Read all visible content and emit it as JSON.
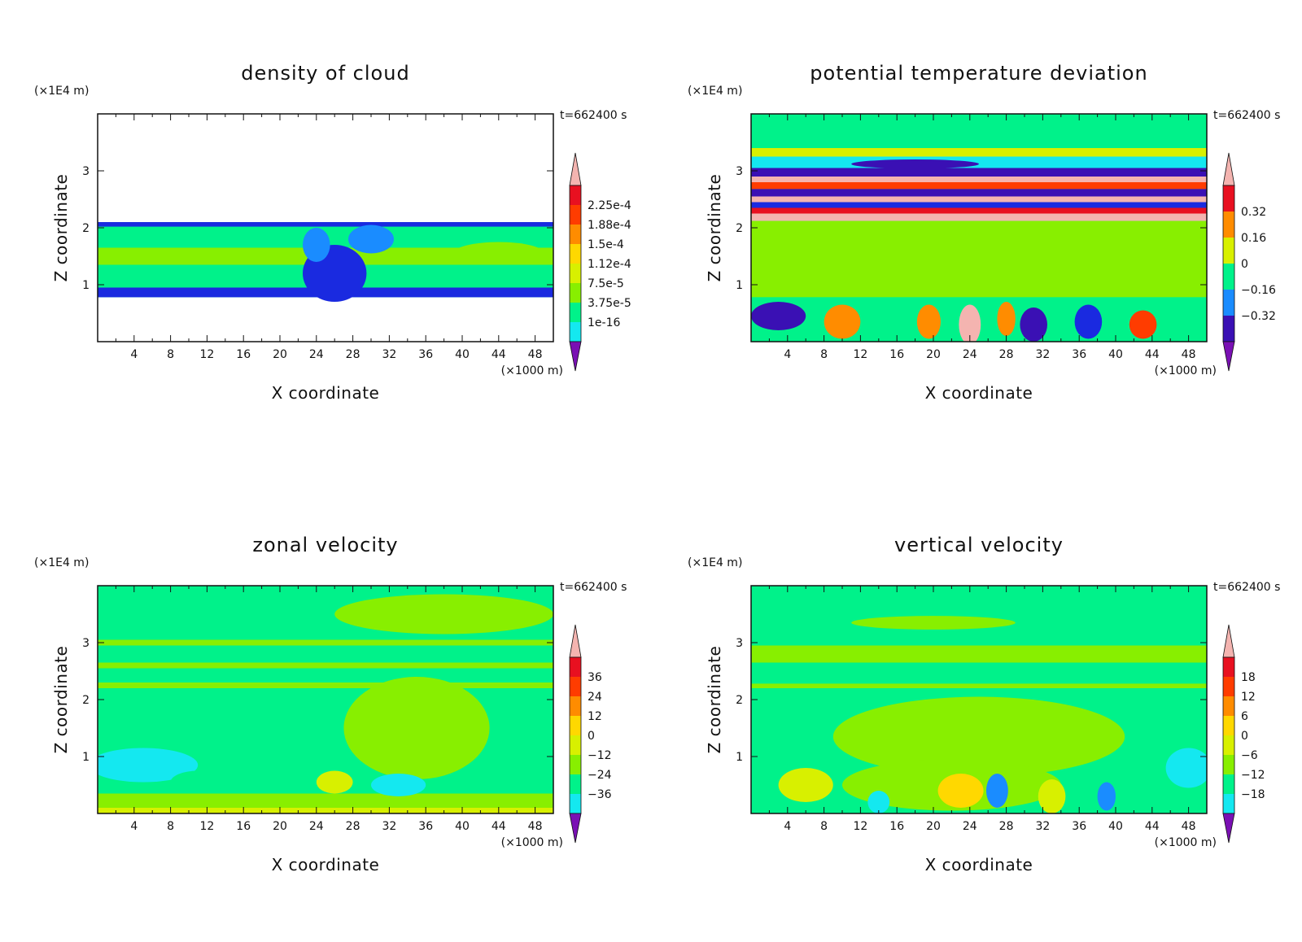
{
  "colormap": [
    "#7a10b4",
    "#3a10b4",
    "#1a2ae0",
    "#1a8cff",
    "#14e8f0",
    "#00f28a",
    "#88ef00",
    "#d8f000",
    "#ffd800",
    "#ff8c00",
    "#ff3c00",
    "#e81020",
    "#f4b4b0"
  ],
  "chart_data": [
    {
      "type": "contour",
      "title": "density of cloud",
      "xlabel": "X coordinate",
      "ylabel": "Z coordinate",
      "x_unit": "(×1000 m)",
      "y_unit": "(×1E4 m)",
      "time_label": "t=662400 s",
      "xlim": [
        0,
        50
      ],
      "ylim": [
        0,
        4
      ],
      "x_ticks": [
        4,
        8,
        12,
        16,
        20,
        24,
        28,
        32,
        36,
        40,
        44,
        48
      ],
      "y_ticks": [
        1,
        2,
        3
      ],
      "colorbar_levels": [
        "2.25e-4",
        "1.88e-4",
        "1.5e-4",
        "1.12e-4",
        "7.5e-5",
        "3.75e-5",
        "1e-16"
      ],
      "field": {
        "layer_bottom": 0.78,
        "layer_top": 2.1,
        "background_level": 5,
        "bands": [
          {
            "z0": 0.78,
            "z1": 0.95,
            "level": 2
          },
          {
            "z0": 1.35,
            "z1": 1.65,
            "level": 6
          },
          {
            "z0": 2.02,
            "z1": 2.1,
            "level": 2
          }
        ],
        "blobs": [
          {
            "x": 26,
            "z": 1.2,
            "rx": 3.5,
            "rz": 0.5,
            "level": 2
          },
          {
            "x": 24,
            "z": 1.7,
            "rx": 1.5,
            "rz": 0.3,
            "level": 3
          },
          {
            "x": 30,
            "z": 1.8,
            "rx": 2.5,
            "rz": 0.25,
            "level": 3
          },
          {
            "x": 44,
            "z": 1.55,
            "rx": 5,
            "rz": 0.2,
            "level": 6
          }
        ]
      }
    },
    {
      "type": "contour",
      "title": "potential temperature deviation",
      "xlabel": "X coordinate",
      "ylabel": "Z coordinate",
      "x_unit": "(×1000 m)",
      "y_unit": "(×1E4 m)",
      "time_label": "t=662400 s",
      "xlim": [
        0,
        50
      ],
      "ylim": [
        0,
        4
      ],
      "x_ticks": [
        4,
        8,
        12,
        16,
        20,
        24,
        28,
        32,
        36,
        40,
        44,
        48
      ],
      "y_ticks": [
        1,
        2,
        3
      ],
      "colorbar_levels": [
        "0.32",
        "0.16",
        "0",
        "-0.16",
        "-0.32"
      ],
      "field": {
        "background_level": 5,
        "bands": [
          {
            "z0": 3.25,
            "z1": 3.4,
            "level": 7
          },
          {
            "z0": 3.05,
            "z1": 3.25,
            "level": 4
          },
          {
            "z0": 2.9,
            "z1": 3.05,
            "level": 1
          },
          {
            "z0": 2.8,
            "z1": 2.9,
            "level": 12
          },
          {
            "z0": 2.68,
            "z1": 2.8,
            "level": 10
          },
          {
            "z0": 2.55,
            "z1": 2.68,
            "level": 1
          },
          {
            "z0": 2.45,
            "z1": 2.55,
            "level": 12
          },
          {
            "z0": 2.35,
            "z1": 2.45,
            "level": 2
          },
          {
            "z0": 2.25,
            "z1": 2.35,
            "level": 11
          },
          {
            "z0": 2.12,
            "z1": 2.25,
            "level": 12
          },
          {
            "z0": 0.78,
            "z1": 2.12,
            "level": 6
          },
          {
            "z0": 0.0,
            "z1": 0.78,
            "level": 5
          }
        ],
        "blobs": [
          {
            "x": 18,
            "z": 3.12,
            "rx": 7,
            "rz": 0.08,
            "level": 1
          },
          {
            "x": 3,
            "z": 0.45,
            "rx": 3,
            "rz": 0.25,
            "level": 1
          },
          {
            "x": 10,
            "z": 0.35,
            "rx": 2,
            "rz": 0.3,
            "level": 9
          },
          {
            "x": 19.5,
            "z": 0.35,
            "rx": 1.3,
            "rz": 0.3,
            "level": 9
          },
          {
            "x": 24,
            "z": 0.3,
            "rx": 1.2,
            "rz": 0.35,
            "level": 12
          },
          {
            "x": 28,
            "z": 0.4,
            "rx": 1.0,
            "rz": 0.3,
            "level": 9
          },
          {
            "x": 31,
            "z": 0.3,
            "rx": 1.5,
            "rz": 0.3,
            "level": 1
          },
          {
            "x": 37,
            "z": 0.35,
            "rx": 1.5,
            "rz": 0.3,
            "level": 2
          },
          {
            "x": 43,
            "z": 0.3,
            "rx": 1.5,
            "rz": 0.25,
            "level": 10
          }
        ]
      }
    },
    {
      "type": "contour",
      "title": "zonal velocity",
      "xlabel": "X coordinate",
      "ylabel": "Z coordinate",
      "x_unit": "(×1000 m)",
      "y_unit": "(×1E4 m)",
      "time_label": "t=662400 s",
      "xlim": [
        0,
        50
      ],
      "ylim": [
        0,
        4
      ],
      "x_ticks": [
        4,
        8,
        12,
        16,
        20,
        24,
        28,
        32,
        36,
        40,
        44,
        48
      ],
      "y_ticks": [
        1,
        2,
        3
      ],
      "colorbar_levels": [
        "36",
        "24",
        "12",
        "0",
        "-12",
        "-24",
        "-36"
      ],
      "field": {
        "background_level": 5,
        "bands": [
          {
            "z0": 2.95,
            "z1": 3.05,
            "level": 6
          },
          {
            "z0": 2.55,
            "z1": 2.65,
            "level": 6
          },
          {
            "z0": 2.2,
            "z1": 2.3,
            "level": 6
          },
          {
            "z0": 0.1,
            "z1": 0.35,
            "level": 6
          },
          {
            "z0": 0.0,
            "z1": 0.1,
            "level": 7
          }
        ],
        "blobs": [
          {
            "x": 38,
            "z": 3.5,
            "rx": 12,
            "rz": 0.35,
            "level": 6
          },
          {
            "x": 35,
            "z": 1.5,
            "rx": 8,
            "rz": 0.9,
            "level": 6
          },
          {
            "x": 5,
            "z": 0.85,
            "rx": 6,
            "rz": 0.3,
            "level": 4
          },
          {
            "x": 11,
            "z": 0.55,
            "rx": 3,
            "rz": 0.2,
            "level": 5
          },
          {
            "x": 26,
            "z": 0.55,
            "rx": 2,
            "rz": 0.2,
            "level": 7
          },
          {
            "x": 33,
            "z": 0.5,
            "rx": 3,
            "rz": 0.2,
            "level": 4
          }
        ]
      }
    },
    {
      "type": "contour",
      "title": "vertical velocity",
      "xlabel": "X coordinate",
      "ylabel": "Z coordinate",
      "x_unit": "(×1000 m)",
      "y_unit": "(×1E4 m)",
      "time_label": "t=662400 s",
      "xlim": [
        0,
        50
      ],
      "ylim": [
        0,
        4
      ],
      "x_ticks": [
        4,
        8,
        12,
        16,
        20,
        24,
        28,
        32,
        36,
        40,
        44,
        48
      ],
      "y_ticks": [
        1,
        2,
        3
      ],
      "colorbar_levels": [
        "18",
        "12",
        "6",
        "0",
        "-6",
        "-12",
        "-18"
      ],
      "field": {
        "background_level": 5,
        "bands": [
          {
            "z0": 2.65,
            "z1": 2.95,
            "level": 6
          },
          {
            "z0": 2.2,
            "z1": 2.28,
            "level": 6
          }
        ],
        "blobs": [
          {
            "x": 20,
            "z": 3.35,
            "rx": 9,
            "rz": 0.12,
            "level": 6
          },
          {
            "x": 25,
            "z": 1.35,
            "rx": 16,
            "rz": 0.7,
            "level": 6
          },
          {
            "x": 22,
            "z": 0.5,
            "rx": 12,
            "rz": 0.45,
            "level": 6
          },
          {
            "x": 6,
            "z": 0.5,
            "rx": 3,
            "rz": 0.3,
            "level": 7
          },
          {
            "x": 14,
            "z": 0.2,
            "rx": 1.2,
            "rz": 0.2,
            "level": 4
          },
          {
            "x": 23,
            "z": 0.4,
            "rx": 2.5,
            "rz": 0.3,
            "level": 8
          },
          {
            "x": 27,
            "z": 0.4,
            "rx": 1.2,
            "rz": 0.3,
            "level": 3
          },
          {
            "x": 33,
            "z": 0.3,
            "rx": 1.5,
            "rz": 0.3,
            "level": 7
          },
          {
            "x": 39,
            "z": 0.3,
            "rx": 1.0,
            "rz": 0.25,
            "level": 3
          },
          {
            "x": 48,
            "z": 0.8,
            "rx": 2.5,
            "rz": 0.35,
            "level": 4
          }
        ]
      }
    }
  ]
}
